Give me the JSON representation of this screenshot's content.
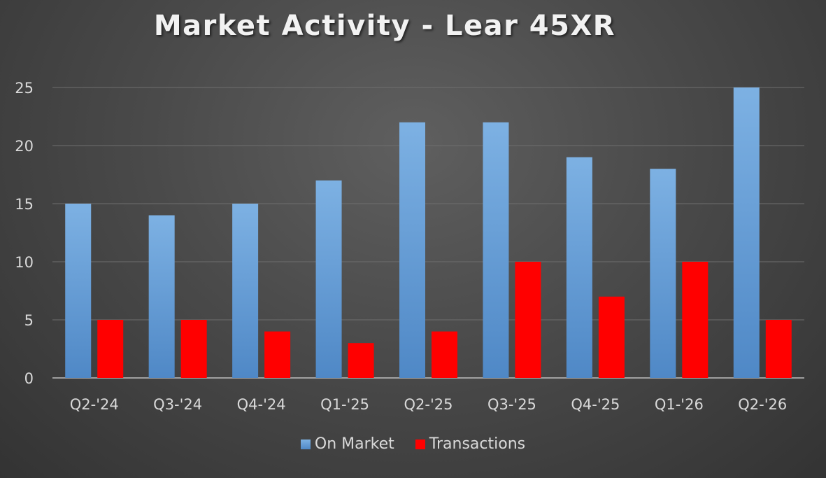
{
  "chart_data": {
    "type": "bar",
    "title": "Market Activity - Lear 45XR",
    "categories": [
      "Q2-'24",
      "Q3-'24",
      "Q4-'24",
      "Q1-'25",
      "Q2-'25",
      "Q3-'25",
      "Q4-'25",
      "Q1-'26",
      "Q2-'26"
    ],
    "series": [
      {
        "name": "On Market",
        "values": [
          15,
          14,
          15,
          17,
          22,
          22,
          19,
          18,
          25
        ],
        "color": "#6fa6de"
      },
      {
        "name": "Transactions",
        "values": [
          5,
          5,
          4,
          3,
          4,
          10,
          7,
          10,
          5
        ],
        "color": "#ff0000"
      }
    ],
    "xlabel": "",
    "ylabel": "",
    "ylim": [
      0,
      25
    ],
    "yticks": [
      0,
      5,
      10,
      15,
      20,
      25
    ],
    "grid": true,
    "legend_position": "bottom"
  }
}
